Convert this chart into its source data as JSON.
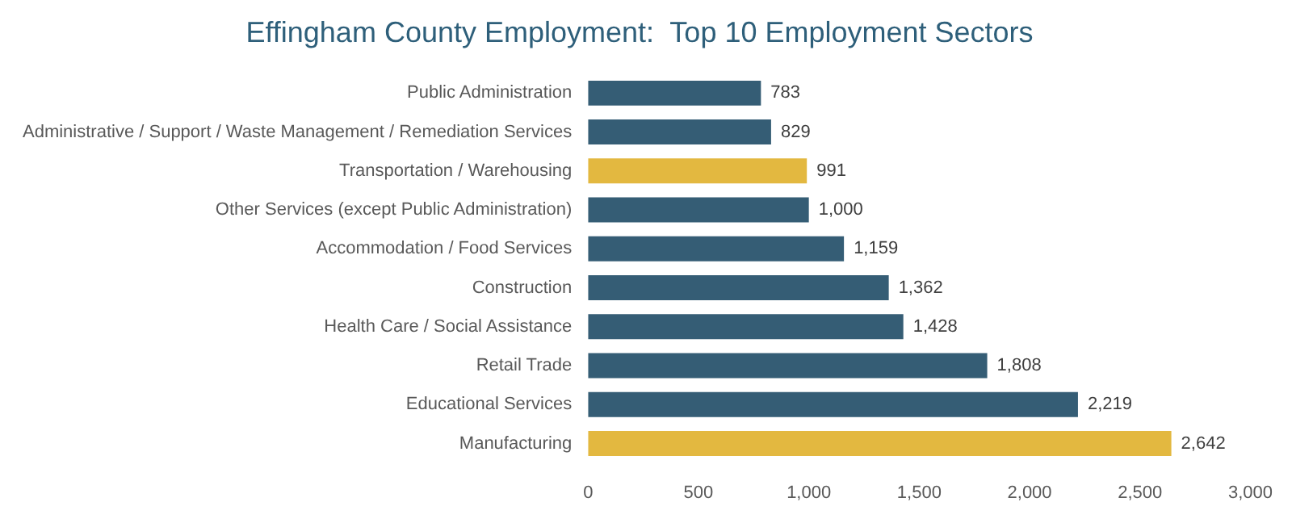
{
  "chart_data": {
    "type": "bar",
    "orientation": "horizontal",
    "title": "Effingham County Employment:  Top 10 Employment Sectors",
    "categories": [
      "Public Administration",
      "Administrative / Support / Waste Management / Remediation Services",
      "Transportation / Warehousing",
      "Other Services (except Public Administration)",
      "Accommodation / Food Services",
      "Construction",
      "Health Care / Social Assistance",
      "Retail Trade",
      "Educational Services",
      "Manufacturing"
    ],
    "values": [
      783,
      829,
      991,
      1000,
      1159,
      1362,
      1428,
      1808,
      2219,
      2642
    ],
    "colors": [
      "#355d75",
      "#355d75",
      "#e3b840",
      "#355d75",
      "#355d75",
      "#355d75",
      "#355d75",
      "#355d75",
      "#355d75",
      "#e3b840"
    ],
    "value_labels": [
      "783",
      "829",
      "991",
      "1,000",
      "1,159",
      "1,362",
      "1,428",
      "1,808",
      "2,219",
      "2,642"
    ],
    "xlim": [
      0,
      3000
    ],
    "xticks": [
      0,
      500,
      {
        "value": 1000,
        "label": "1,000"
      },
      {
        "value": 1500,
        "label": "1,500"
      },
      {
        "value": 2000,
        "label": "2,000"
      },
      {
        "value": 2500,
        "label": "2,500"
      },
      {
        "value": 3000,
        "label": "3,000"
      }
    ],
    "grid": false,
    "legend": false
  }
}
